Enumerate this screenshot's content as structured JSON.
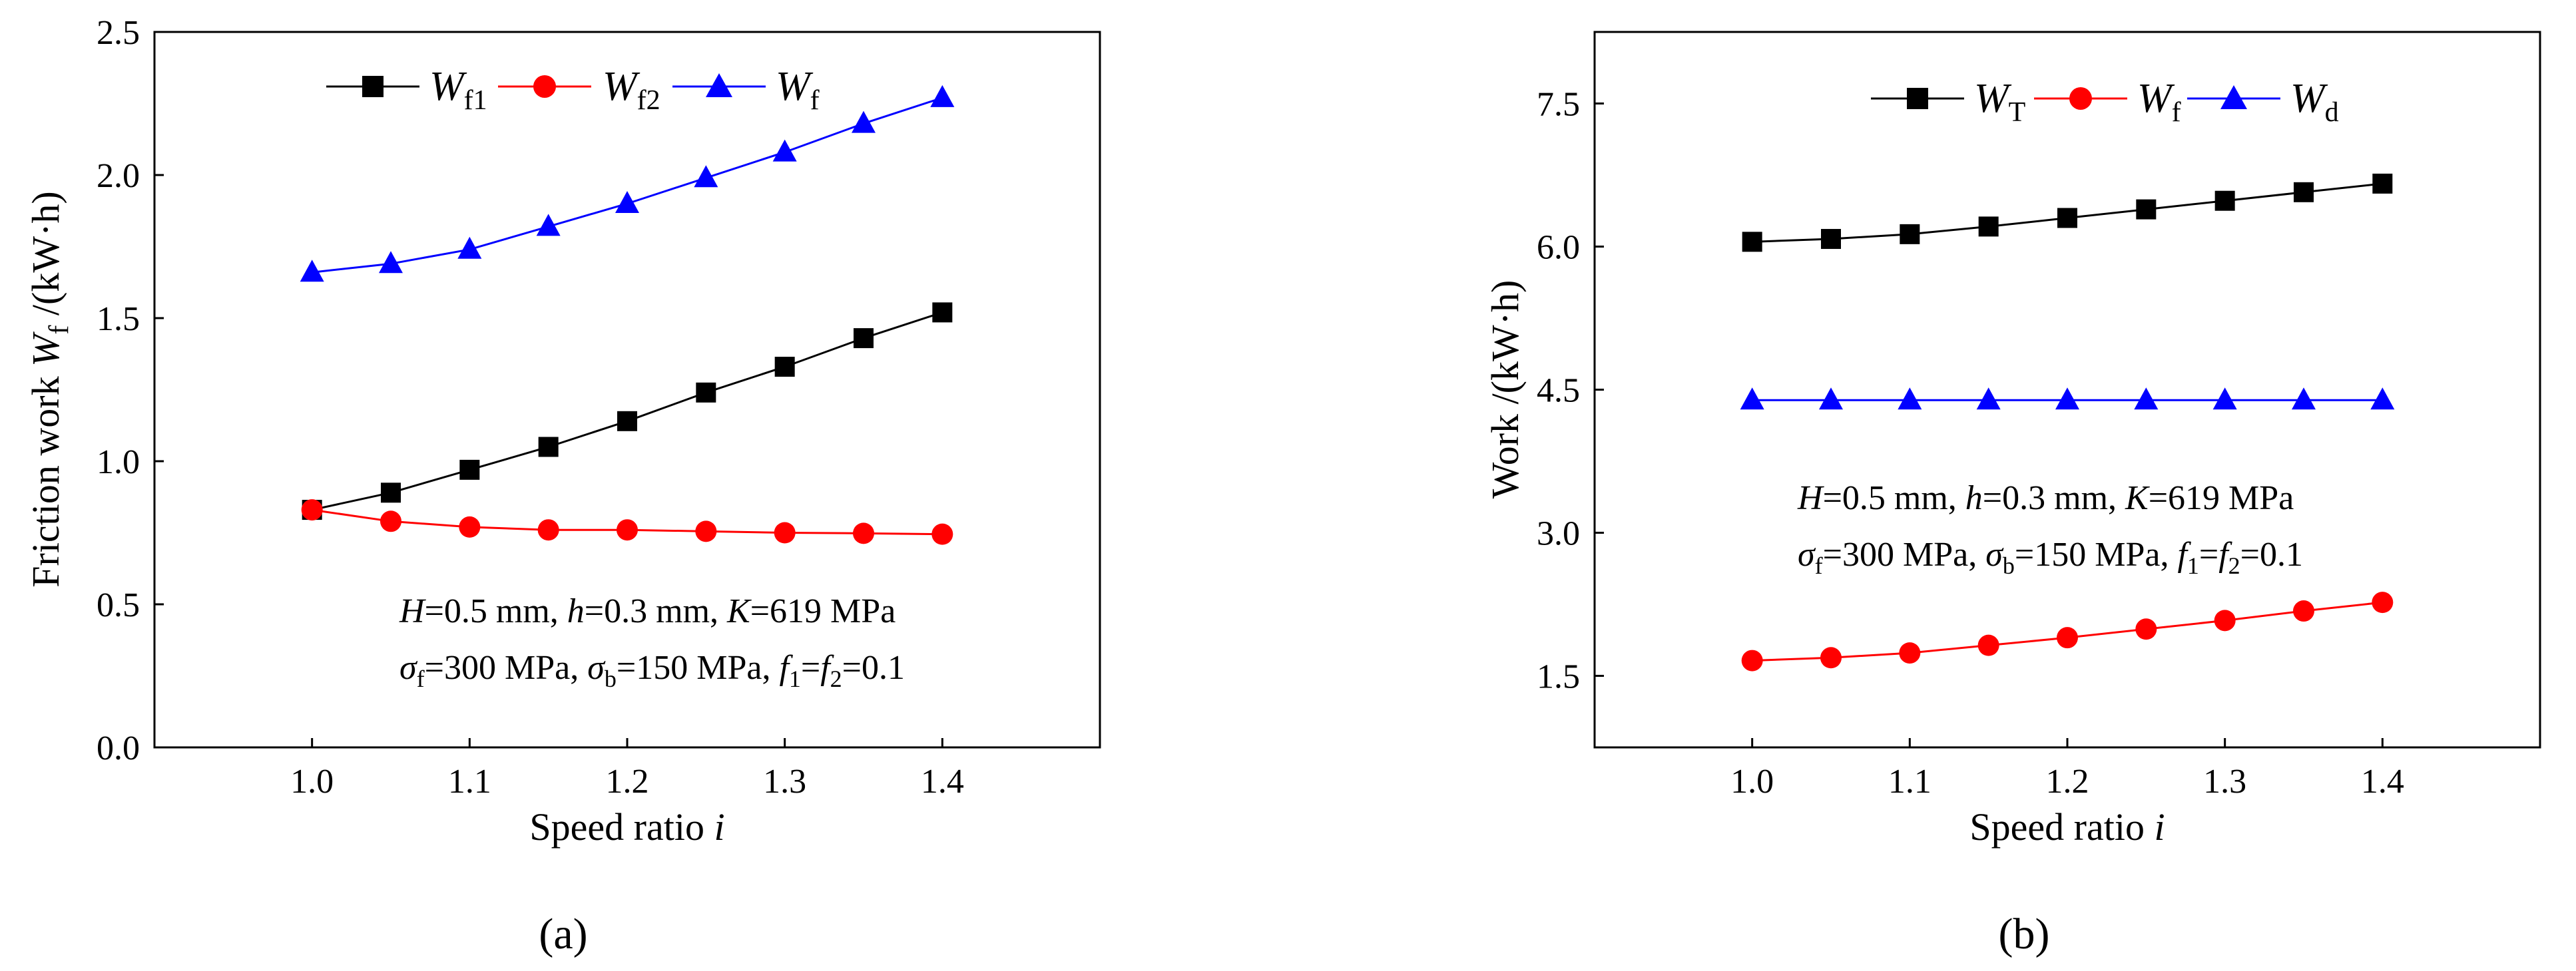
{
  "colors": {
    "W_T": "#000000",
    "W_f1": "#000000",
    "W_f2": "#ff0000",
    "W_f": "#0000ff",
    "W_d": "#0000ff"
  },
  "chart_data": [
    {
      "type": "line",
      "caption": "(a)",
      "title": "",
      "xlabel": "Speed ratio i",
      "ylabel": "Friction work W_f /(kW·h)",
      "xlim": [
        0.9,
        1.5
      ],
      "ylim": [
        0.0,
        2.5
      ],
      "xticks": [
        "1.0",
        "1.1",
        "1.2",
        "1.3",
        "1.4"
      ],
      "yticks": [
        "0.0",
        "0.5",
        "1.0",
        "1.5",
        "2.0",
        "2.5"
      ],
      "x": [
        1.0,
        1.05,
        1.1,
        1.15,
        1.2,
        1.25,
        1.3,
        1.35,
        1.4
      ],
      "series": [
        {
          "name": "W_f1",
          "marker": "square",
          "color": "#000000",
          "values": [
            0.83,
            0.89,
            0.97,
            1.05,
            1.14,
            1.24,
            1.33,
            1.43,
            1.52
          ]
        },
        {
          "name": "W_f2",
          "marker": "circle",
          "color": "#ff0000",
          "values": [
            0.83,
            0.79,
            0.77,
            0.76,
            0.76,
            0.755,
            0.75,
            0.748,
            0.745
          ]
        },
        {
          "name": "W_f",
          "marker": "triangle",
          "color": "#0000ff",
          "values": [
            1.66,
            1.69,
            1.74,
            1.82,
            1.9,
            1.99,
            2.08,
            2.18,
            2.27
          ]
        }
      ],
      "annotations": [
        "H=0.5 mm, h=0.3 mm, K=619 MPa",
        "σf=300 MPa, σb=150 MPa, f1=f2=0.1"
      ],
      "legend_position": "top"
    },
    {
      "type": "line",
      "caption": "(b)",
      "title": "",
      "xlabel": "Speed ratio i",
      "ylabel": "Work /(kW·h)",
      "xlim": [
        0.9,
        1.5
      ],
      "ylim": [
        0.75,
        8.25
      ],
      "xticks": [
        "1.0",
        "1.1",
        "1.2",
        "1.3",
        "1.4"
      ],
      "yticks": [
        "1.5",
        "3.0",
        "4.5",
        "6.0",
        "7.5"
      ],
      "x": [
        1.0,
        1.05,
        1.1,
        1.15,
        1.2,
        1.25,
        1.3,
        1.35,
        1.4
      ],
      "series": [
        {
          "name": "W_T",
          "marker": "square",
          "color": "#000000",
          "values": [
            6.05,
            6.08,
            6.13,
            6.21,
            6.3,
            6.39,
            6.48,
            6.57,
            6.66
          ]
        },
        {
          "name": "W_f",
          "marker": "circle",
          "color": "#ff0000",
          "values": [
            1.66,
            1.69,
            1.74,
            1.82,
            1.9,
            1.99,
            2.08,
            2.18,
            2.27
          ]
        },
        {
          "name": "W_d",
          "marker": "triangle",
          "color": "#0000ff",
          "values": [
            4.39,
            4.39,
            4.39,
            4.39,
            4.39,
            4.39,
            4.39,
            4.39,
            4.39
          ]
        }
      ],
      "annotations": [
        "H=0.5 mm, h=0.3 mm, K=619 MPa",
        "σf=300 MPa, σb=150 MPa, f1=f2=0.1"
      ],
      "legend_position": "top"
    }
  ]
}
